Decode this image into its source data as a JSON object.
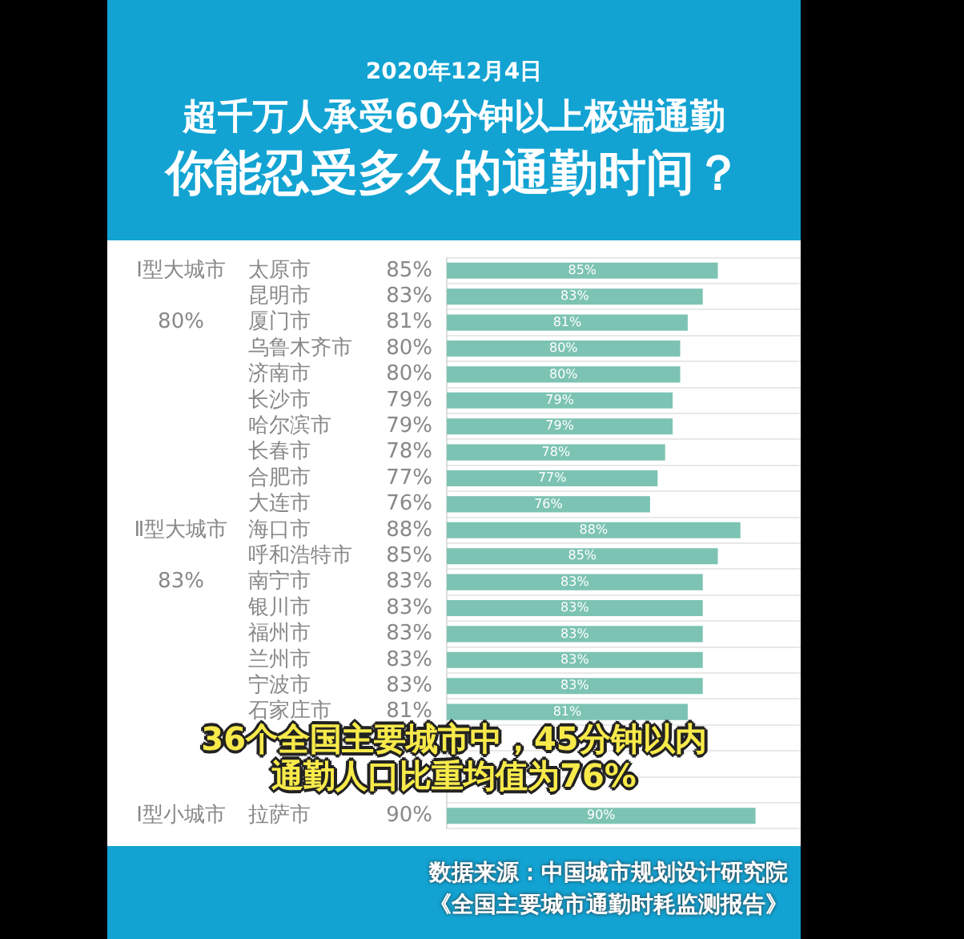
{
  "chart_data": {
    "type": "bar",
    "orientation": "horizontal",
    "title": "超千万人承受60分钟以上极端通勤",
    "subtitle": "你能忍受多久的通勤时间？",
    "categories": [
      "太原市",
      "昆明市",
      "厦门市",
      "乌鲁木齐市",
      "济南市",
      "长沙市",
      "哈尔滨市",
      "长春市",
      "合肥市",
      "大连市",
      "海口市",
      "呼和浩特市",
      "南宁市",
      "银川市",
      "福州市",
      "兰州市",
      "宁波市",
      "石家庄市",
      null,
      null,
      null,
      "拉萨市"
    ],
    "values": [
      85,
      83,
      81,
      80,
      80,
      79,
      79,
      78,
      77,
      76,
      88,
      85,
      83,
      83,
      83,
      83,
      83,
      81,
      null,
      null,
      null,
      90
    ],
    "value_labels": [
      "85%",
      "83%",
      "81%",
      "80%",
      "80%",
      "79%",
      "79%",
      "78%",
      "77%",
      "76%",
      "88%",
      "85%",
      "83%",
      "83%",
      "83%",
      "83%",
      "83%",
      "81%",
      null,
      null,
      null,
      "90%"
    ],
    "color": "#7cc3b3",
    "xlim": [
      49,
      96
    ],
    "tick_labels": "y",
    "grid": "y",
    "legend": false,
    "annotations": [
      "2020年12月4日",
      {
        "text": "Ⅰ型大城市",
        "y": "太原市"
      },
      {
        "text": "80%",
        "y": "厦门市"
      },
      {
        "text": "Ⅱ型大城市",
        "y": "海口市"
      },
      {
        "text": "83%",
        "y": "南宁市"
      },
      {
        "text": "Ⅰ型小城市",
        "y": "拉萨市"
      },
      "36个全国主要城市中，45分钟以内",
      "通勤人口比重均值为76%",
      "数据来源：中国城市规划设计研究院",
      "《全国主要城市通勤时耗监测报告》"
    ]
  }
}
